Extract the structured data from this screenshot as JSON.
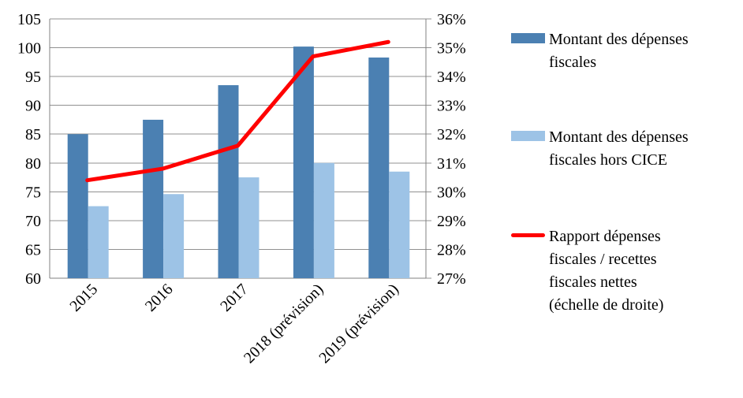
{
  "chart_data": {
    "type": "bar",
    "title": "",
    "xlabel": "",
    "ylabel": "",
    "categories": [
      "2015",
      "2016",
      "2017",
      "2018 (prévision)",
      "2019 (prévision)"
    ],
    "series": [
      {
        "name": "Montant des dépenses fiscales",
        "kind": "bar",
        "axis": "left",
        "color": "#4b80b2",
        "values": [
          85,
          87.5,
          93.5,
          100.2,
          98.3
        ]
      },
      {
        "name": "Montant des dépenses fiscales hors CICE",
        "kind": "bar",
        "axis": "left",
        "color": "#9dc3e6",
        "values": [
          72.5,
          74.6,
          77.5,
          80,
          78.5
        ]
      },
      {
        "name": "Rapport dépenses fiscales / recettes fiscales nettes (échelle de droite)",
        "kind": "line",
        "axis": "right",
        "color": "#ff0000",
        "values": [
          30.4,
          30.8,
          31.6,
          34.7,
          35.2
        ]
      }
    ],
    "left_axis": {
      "min": 60,
      "max": 105,
      "step": 5,
      "suffix": ""
    },
    "right_axis": {
      "min": 27,
      "max": 36,
      "step": 1,
      "suffix": "%"
    },
    "grid": true,
    "legend_position": "right"
  },
  "legend": {
    "items": [
      {
        "label": "Montant des dépenses\nfiscales",
        "swatch": "bar",
        "color": "#4b80b2"
      },
      {
        "label": "Montant des dépenses\nfiscales hors CICE",
        "swatch": "bar",
        "color": "#9dc3e6"
      },
      {
        "label": "Rapport dépenses\nfiscales / recettes\nfiscales nettes\n(échelle de droite)",
        "swatch": "line",
        "color": "#ff0000"
      }
    ]
  },
  "colors": {
    "grid": "#909090",
    "axis": "#808080",
    "text": "#000000",
    "background": "#ffffff"
  }
}
